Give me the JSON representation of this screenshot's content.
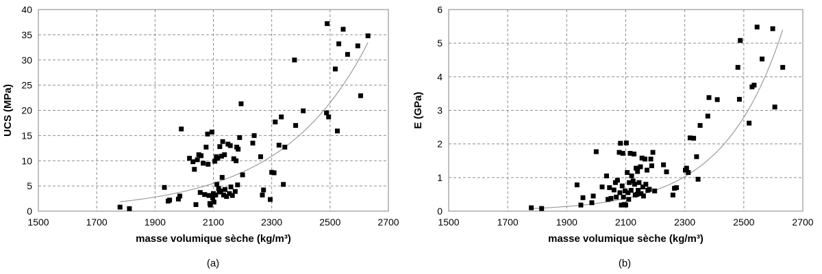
{
  "chart_data": [
    {
      "type": "scatter",
      "xlabel": "masse volumique sèche (kg/m³)",
      "ylabel": "UCS (MPa)",
      "caption": "(a)",
      "xlim": [
        1500,
        2700
      ],
      "ylim": [
        0,
        40
      ],
      "xticks": [
        1500,
        1700,
        1900,
        2100,
        2300,
        2500,
        2700
      ],
      "yticks": [
        0,
        5,
        10,
        15,
        20,
        25,
        30,
        35,
        40
      ],
      "grid": true,
      "trendline": {
        "type": "exponential",
        "a": 0.004376,
        "b": 0.0034
      },
      "points": [
        {
          "x": 1780,
          "y": 0.8
        },
        {
          "x": 1812,
          "y": 0.5
        },
        {
          "x": 1932,
          "y": 4.7
        },
        {
          "x": 1945,
          "y": 2.0
        },
        {
          "x": 1950,
          "y": 2.2
        },
        {
          "x": 1980,
          "y": 2.4
        },
        {
          "x": 1985,
          "y": 3.0
        },
        {
          "x": 1990,
          "y": 16.3
        },
        {
          "x": 2018,
          "y": 10.5
        },
        {
          "x": 2030,
          "y": 9.8
        },
        {
          "x": 2035,
          "y": 8.3
        },
        {
          "x": 2040,
          "y": 1.3
        },
        {
          "x": 2045,
          "y": 10.2
        },
        {
          "x": 2050,
          "y": 11.2
        },
        {
          "x": 2055,
          "y": 3.7
        },
        {
          "x": 2058,
          "y": 11.0
        },
        {
          "x": 2065,
          "y": 9.5
        },
        {
          "x": 2070,
          "y": 3.3
        },
        {
          "x": 2075,
          "y": 12.7
        },
        {
          "x": 2080,
          "y": 15.3
        },
        {
          "x": 2082,
          "y": 9.3
        },
        {
          "x": 2085,
          "y": 3.1
        },
        {
          "x": 2088,
          "y": 1.5
        },
        {
          "x": 2090,
          "y": 1.2
        },
        {
          "x": 2095,
          "y": 15.7
        },
        {
          "x": 2098,
          "y": 2.6
        },
        {
          "x": 2100,
          "y": 3.5
        },
        {
          "x": 2102,
          "y": 1.8
        },
        {
          "x": 2105,
          "y": 9.9
        },
        {
          "x": 2108,
          "y": 3.2
        },
        {
          "x": 2110,
          "y": 10.8
        },
        {
          "x": 2112,
          "y": 5.3
        },
        {
          "x": 2115,
          "y": 10.5
        },
        {
          "x": 2118,
          "y": 4.5
        },
        {
          "x": 2120,
          "y": 3.8
        },
        {
          "x": 2122,
          "y": 12.8
        },
        {
          "x": 2125,
          "y": 4.0
        },
        {
          "x": 2128,
          "y": 10.9
        },
        {
          "x": 2130,
          "y": 6.7
        },
        {
          "x": 2132,
          "y": 13.8
        },
        {
          "x": 2135,
          "y": 3.2
        },
        {
          "x": 2138,
          "y": 11.2
        },
        {
          "x": 2140,
          "y": 4.3
        },
        {
          "x": 2145,
          "y": 2.9
        },
        {
          "x": 2150,
          "y": 13.3
        },
        {
          "x": 2155,
          "y": 3.5
        },
        {
          "x": 2158,
          "y": 13.0
        },
        {
          "x": 2160,
          "y": 4.8
        },
        {
          "x": 2165,
          "y": 3.1
        },
        {
          "x": 2170,
          "y": 10.4
        },
        {
          "x": 2175,
          "y": 3.9
        },
        {
          "x": 2178,
          "y": 10.0
        },
        {
          "x": 2180,
          "y": 12.7
        },
        {
          "x": 2183,
          "y": 5.2
        },
        {
          "x": 2185,
          "y": 12.3
        },
        {
          "x": 2190,
          "y": 14.6
        },
        {
          "x": 2195,
          "y": 21.3
        },
        {
          "x": 2200,
          "y": 7.2
        },
        {
          "x": 2235,
          "y": 13.5
        },
        {
          "x": 2240,
          "y": 15.0
        },
        {
          "x": 2262,
          "y": 10.8
        },
        {
          "x": 2268,
          "y": 3.2
        },
        {
          "x": 2272,
          "y": 4.2
        },
        {
          "x": 2295,
          "y": 2.3
        },
        {
          "x": 2300,
          "y": 7.7
        },
        {
          "x": 2308,
          "y": 7.6
        },
        {
          "x": 2312,
          "y": 17.7
        },
        {
          "x": 2325,
          "y": 13.1
        },
        {
          "x": 2333,
          "y": 18.7
        },
        {
          "x": 2340,
          "y": 5.3
        },
        {
          "x": 2345,
          "y": 12.7
        },
        {
          "x": 2378,
          "y": 30.0
        },
        {
          "x": 2382,
          "y": 17.0
        },
        {
          "x": 2408,
          "y": 19.9
        },
        {
          "x": 2488,
          "y": 19.5
        },
        {
          "x": 2490,
          "y": 37.2
        },
        {
          "x": 2495,
          "y": 18.7
        },
        {
          "x": 2518,
          "y": 28.2
        },
        {
          "x": 2525,
          "y": 15.9
        },
        {
          "x": 2530,
          "y": 33.2
        },
        {
          "x": 2545,
          "y": 36.1
        },
        {
          "x": 2560,
          "y": 31.1
        },
        {
          "x": 2595,
          "y": 32.8
        },
        {
          "x": 2605,
          "y": 22.9
        },
        {
          "x": 2630,
          "y": 34.8
        }
      ]
    },
    {
      "type": "scatter",
      "xlabel": "masse volumique sèche (kg/m³)",
      "ylabel": "E (GPa)",
      "caption": "(b)",
      "xlim": [
        1500,
        2700
      ],
      "ylim": [
        0,
        6
      ],
      "xticks": [
        1500,
        1700,
        1900,
        2100,
        2300,
        2500,
        2700
      ],
      "yticks": [
        0,
        1,
        2,
        3,
        4,
        5,
        6
      ],
      "grid": true,
      "trendline": {
        "type": "exponential",
        "a": 1.04e-05,
        "b": 0.005
      },
      "points": [
        {
          "x": 1780,
          "y": 0.1
        },
        {
          "x": 1815,
          "y": 0.08
        },
        {
          "x": 1935,
          "y": 0.78
        },
        {
          "x": 1948,
          "y": 0.18
        },
        {
          "x": 1955,
          "y": 0.4
        },
        {
          "x": 1985,
          "y": 0.25
        },
        {
          "x": 1990,
          "y": 0.45
        },
        {
          "x": 2000,
          "y": 1.77
        },
        {
          "x": 2020,
          "y": 0.72
        },
        {
          "x": 2035,
          "y": 1.05
        },
        {
          "x": 2040,
          "y": 0.35
        },
        {
          "x": 2045,
          "y": 0.7
        },
        {
          "x": 2050,
          "y": 0.38
        },
        {
          "x": 2060,
          "y": 0.63
        },
        {
          "x": 2065,
          "y": 0.85
        },
        {
          "x": 2068,
          "y": 0.42
        },
        {
          "x": 2072,
          "y": 0.92
        },
        {
          "x": 2078,
          "y": 1.75
        },
        {
          "x": 2080,
          "y": 0.55
        },
        {
          "x": 2082,
          "y": 2.02
        },
        {
          "x": 2085,
          "y": 0.18
        },
        {
          "x": 2088,
          "y": 0.75
        },
        {
          "x": 2090,
          "y": 1.72
        },
        {
          "x": 2092,
          "y": 0.42
        },
        {
          "x": 2095,
          "y": 0.2
        },
        {
          "x": 2098,
          "y": 0.6
        },
        {
          "x": 2100,
          "y": 0.18
        },
        {
          "x": 2102,
          "y": 2.03
        },
        {
          "x": 2105,
          "y": 1.15
        },
        {
          "x": 2108,
          "y": 0.55
        },
        {
          "x": 2110,
          "y": 0.35
        },
        {
          "x": 2112,
          "y": 0.85
        },
        {
          "x": 2115,
          "y": 1.72
        },
        {
          "x": 2118,
          "y": 0.62
        },
        {
          "x": 2120,
          "y": 1.05
        },
        {
          "x": 2125,
          "y": 0.9
        },
        {
          "x": 2128,
          "y": 1.7
        },
        {
          "x": 2130,
          "y": 0.8
        },
        {
          "x": 2132,
          "y": 0.48
        },
        {
          "x": 2135,
          "y": 1.28
        },
        {
          "x": 2138,
          "y": 0.5
        },
        {
          "x": 2140,
          "y": 1.18
        },
        {
          "x": 2142,
          "y": 0.62
        },
        {
          "x": 2145,
          "y": 0.85
        },
        {
          "x": 2150,
          "y": 1.32
        },
        {
          "x": 2152,
          "y": 0.52
        },
        {
          "x": 2155,
          "y": 1.58
        },
        {
          "x": 2158,
          "y": 0.72
        },
        {
          "x": 2160,
          "y": 0.45
        },
        {
          "x": 2165,
          "y": 1.55
        },
        {
          "x": 2168,
          "y": 0.8
        },
        {
          "x": 2172,
          "y": 1.22
        },
        {
          "x": 2175,
          "y": 0.62
        },
        {
          "x": 2180,
          "y": 0.65
        },
        {
          "x": 2185,
          "y": 1.55
        },
        {
          "x": 2188,
          "y": 1.35
        },
        {
          "x": 2192,
          "y": 1.75
        },
        {
          "x": 2198,
          "y": 0.6
        },
        {
          "x": 2228,
          "y": 1.38
        },
        {
          "x": 2238,
          "y": 1.17
        },
        {
          "x": 2260,
          "y": 0.48
        },
        {
          "x": 2265,
          "y": 0.68
        },
        {
          "x": 2272,
          "y": 0.7
        },
        {
          "x": 2302,
          "y": 1.22
        },
        {
          "x": 2306,
          "y": 1.28
        },
        {
          "x": 2312,
          "y": 1.15
        },
        {
          "x": 2318,
          "y": 2.18
        },
        {
          "x": 2330,
          "y": 2.17
        },
        {
          "x": 2340,
          "y": 1.62
        },
        {
          "x": 2345,
          "y": 0.95
        },
        {
          "x": 2352,
          "y": 2.55
        },
        {
          "x": 2378,
          "y": 2.83
        },
        {
          "x": 2382,
          "y": 3.38
        },
        {
          "x": 2410,
          "y": 3.32
        },
        {
          "x": 2480,
          "y": 4.28
        },
        {
          "x": 2485,
          "y": 3.33
        },
        {
          "x": 2488,
          "y": 5.08
        },
        {
          "x": 2518,
          "y": 2.62
        },
        {
          "x": 2528,
          "y": 3.7
        },
        {
          "x": 2535,
          "y": 3.75
        },
        {
          "x": 2545,
          "y": 5.48
        },
        {
          "x": 2562,
          "y": 4.53
        },
        {
          "x": 2598,
          "y": 5.43
        },
        {
          "x": 2605,
          "y": 3.1
        },
        {
          "x": 2632,
          "y": 4.28
        }
      ]
    }
  ]
}
